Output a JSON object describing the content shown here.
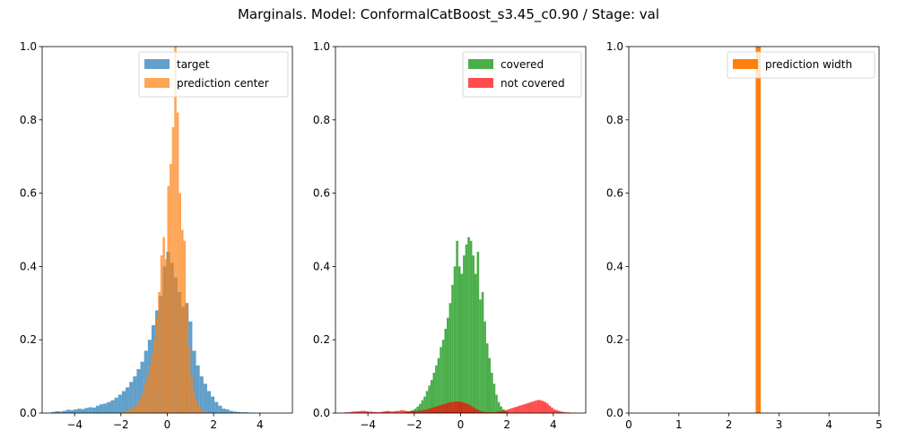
{
  "figure": {
    "title": "Marginals. Model: ConformalCatBoost_s3.45_c0.90 / Stage: val"
  },
  "colors": {
    "target": "#1f77b4",
    "prediction_center": "#ff7f0e",
    "covered": "#2ca02c",
    "not_covered": "#ff0000",
    "prediction_width": "#ff7f0e"
  },
  "chart_data": [
    {
      "type": "histogram",
      "xlim": [
        -5.4,
        5.4
      ],
      "ylim": [
        0,
        1.0
      ],
      "xticks": [
        -4,
        -2,
        0,
        2,
        4
      ],
      "xtick_labels": [
        "−4",
        "−2",
        "0",
        "2",
        "4"
      ],
      "yticks": [
        0,
        0.2,
        0.4,
        0.6,
        0.8,
        1.0
      ],
      "ytick_labels": [
        "0.0",
        "0.2",
        "0.4",
        "0.6",
        "0.8",
        "1.0"
      ],
      "legend": "top-right",
      "series": [
        {
          "name": "target",
          "color": "#1f77b4",
          "alpha": 0.7,
          "bins": {
            "start": -5.0,
            "width": 0.16
          },
          "density": [
            0.003,
            0.005,
            0.004,
            0.006,
            0.009,
            0.008,
            0.01,
            0.012,
            0.011,
            0.014,
            0.016,
            0.015,
            0.02,
            0.024,
            0.026,
            0.03,
            0.035,
            0.042,
            0.05,
            0.06,
            0.07,
            0.085,
            0.1,
            0.12,
            0.14,
            0.17,
            0.2,
            0.24,
            0.28,
            0.32,
            0.4,
            0.44,
            0.41,
            0.37,
            0.33,
            0.29,
            0.3,
            0.25,
            0.17,
            0.13,
            0.1,
            0.08,
            0.06,
            0.045,
            0.03,
            0.02,
            0.012,
            0.01,
            0.006,
            0.004,
            0.003,
            0.002,
            0.002,
            0.001
          ]
        },
        {
          "name": "prediction center",
          "color": "#ff7f0e",
          "alpha": 0.7,
          "bins": {
            "start": -2.0,
            "width": 0.1
          },
          "density": [
            0.002,
            0.004,
            0.006,
            0.008,
            0.012,
            0.016,
            0.022,
            0.03,
            0.04,
            0.055,
            0.08,
            0.1,
            0.13,
            0.16,
            0.2,
            0.26,
            0.33,
            0.43,
            0.48,
            0.42,
            0.62,
            0.68,
            0.78,
            1.0,
            0.82,
            0.6,
            0.5,
            0.47,
            0.3,
            0.18,
            0.1,
            0.06,
            0.035,
            0.02,
            0.012,
            0.006
          ]
        }
      ]
    },
    {
      "type": "histogram",
      "xlim": [
        -5.4,
        5.4
      ],
      "ylim": [
        0,
        1.0
      ],
      "xticks": [
        -4,
        -2,
        0,
        2,
        4
      ],
      "xtick_labels": [
        "−4",
        "−2",
        "0",
        "2",
        "4"
      ],
      "yticks": [
        0,
        0.2,
        0.4,
        0.6,
        0.8,
        1.0
      ],
      "ytick_labels": [
        "0.0",
        "0.2",
        "0.4",
        "0.6",
        "0.8",
        "1.0"
      ],
      "legend": "top-right",
      "series": [
        {
          "name": "covered",
          "color": "#2ca02c",
          "alpha": 0.85,
          "bins": {
            "start": -2.4,
            "width": 0.1
          },
          "density": [
            0.002,
            0.004,
            0.006,
            0.008,
            0.012,
            0.018,
            0.025,
            0.035,
            0.045,
            0.06,
            0.075,
            0.09,
            0.11,
            0.13,
            0.15,
            0.18,
            0.2,
            0.23,
            0.26,
            0.3,
            0.35,
            0.4,
            0.47,
            0.4,
            0.38,
            0.43,
            0.46,
            0.48,
            0.47,
            0.43,
            0.38,
            0.44,
            0.31,
            0.33,
            0.25,
            0.19,
            0.15,
            0.11,
            0.08,
            0.05,
            0.03,
            0.018,
            0.01,
            0.005,
            0.002
          ]
        },
        {
          "name": "not covered",
          "color": "#ff0000",
          "alpha": 0.7,
          "bins": {
            "start": -5.0,
            "width": 0.1
          },
          "density": [
            0.002,
            0.002,
            0.003,
            0.004,
            0.004,
            0.005,
            0.005,
            0.006,
            0.006,
            0.005,
            0.004,
            0.004,
            0.003,
            0.003,
            0.002,
            0.003,
            0.004,
            0.005,
            0.006,
            0.005,
            0.004,
            0.005,
            0.006,
            0.006,
            0.008,
            0.007,
            0.006,
            0.005,
            0.005,
            0.006,
            0.006,
            0.005,
            0.007,
            0.008,
            0.009,
            0.01,
            0.012,
            0.014,
            0.016,
            0.018,
            0.02,
            0.022,
            0.024,
            0.025,
            0.028,
            0.03,
            0.03,
            0.031,
            0.032,
            0.031,
            0.03,
            0.028,
            0.026,
            0.024,
            0.02,
            0.016,
            0.012,
            0.009,
            0.006,
            0.004,
            0.003,
            0.002,
            0.002,
            0.002,
            0.002,
            0.003,
            0.004,
            0.005,
            0.006,
            0.008,
            0.01,
            0.012,
            0.014,
            0.016,
            0.018,
            0.02,
            0.022,
            0.024,
            0.026,
            0.028,
            0.03,
            0.032,
            0.034,
            0.036,
            0.035,
            0.033,
            0.03,
            0.026,
            0.02,
            0.015,
            0.01,
            0.008,
            0.006,
            0.004,
            0.003,
            0.002,
            0.002,
            0.001,
            0.001,
            0.001
          ]
        }
      ]
    },
    {
      "type": "histogram",
      "xlim": [
        0,
        5
      ],
      "ylim": [
        0,
        1.0
      ],
      "xticks": [
        0,
        1,
        2,
        3,
        4,
        5
      ],
      "xtick_labels": [
        "0",
        "1",
        "2",
        "3",
        "4",
        "5"
      ],
      "yticks": [
        0,
        0.2,
        0.4,
        0.6,
        0.8,
        1.0
      ],
      "ytick_labels": [
        "0.0",
        "0.2",
        "0.4",
        "0.6",
        "0.8",
        "1.0"
      ],
      "legend": "top-right",
      "series": [
        {
          "name": "prediction width",
          "color": "#ff7f0e",
          "alpha": 1.0,
          "bins": {
            "start": 2.535,
            "width": 0.1
          },
          "density": [
            10.0
          ]
        }
      ]
    }
  ]
}
